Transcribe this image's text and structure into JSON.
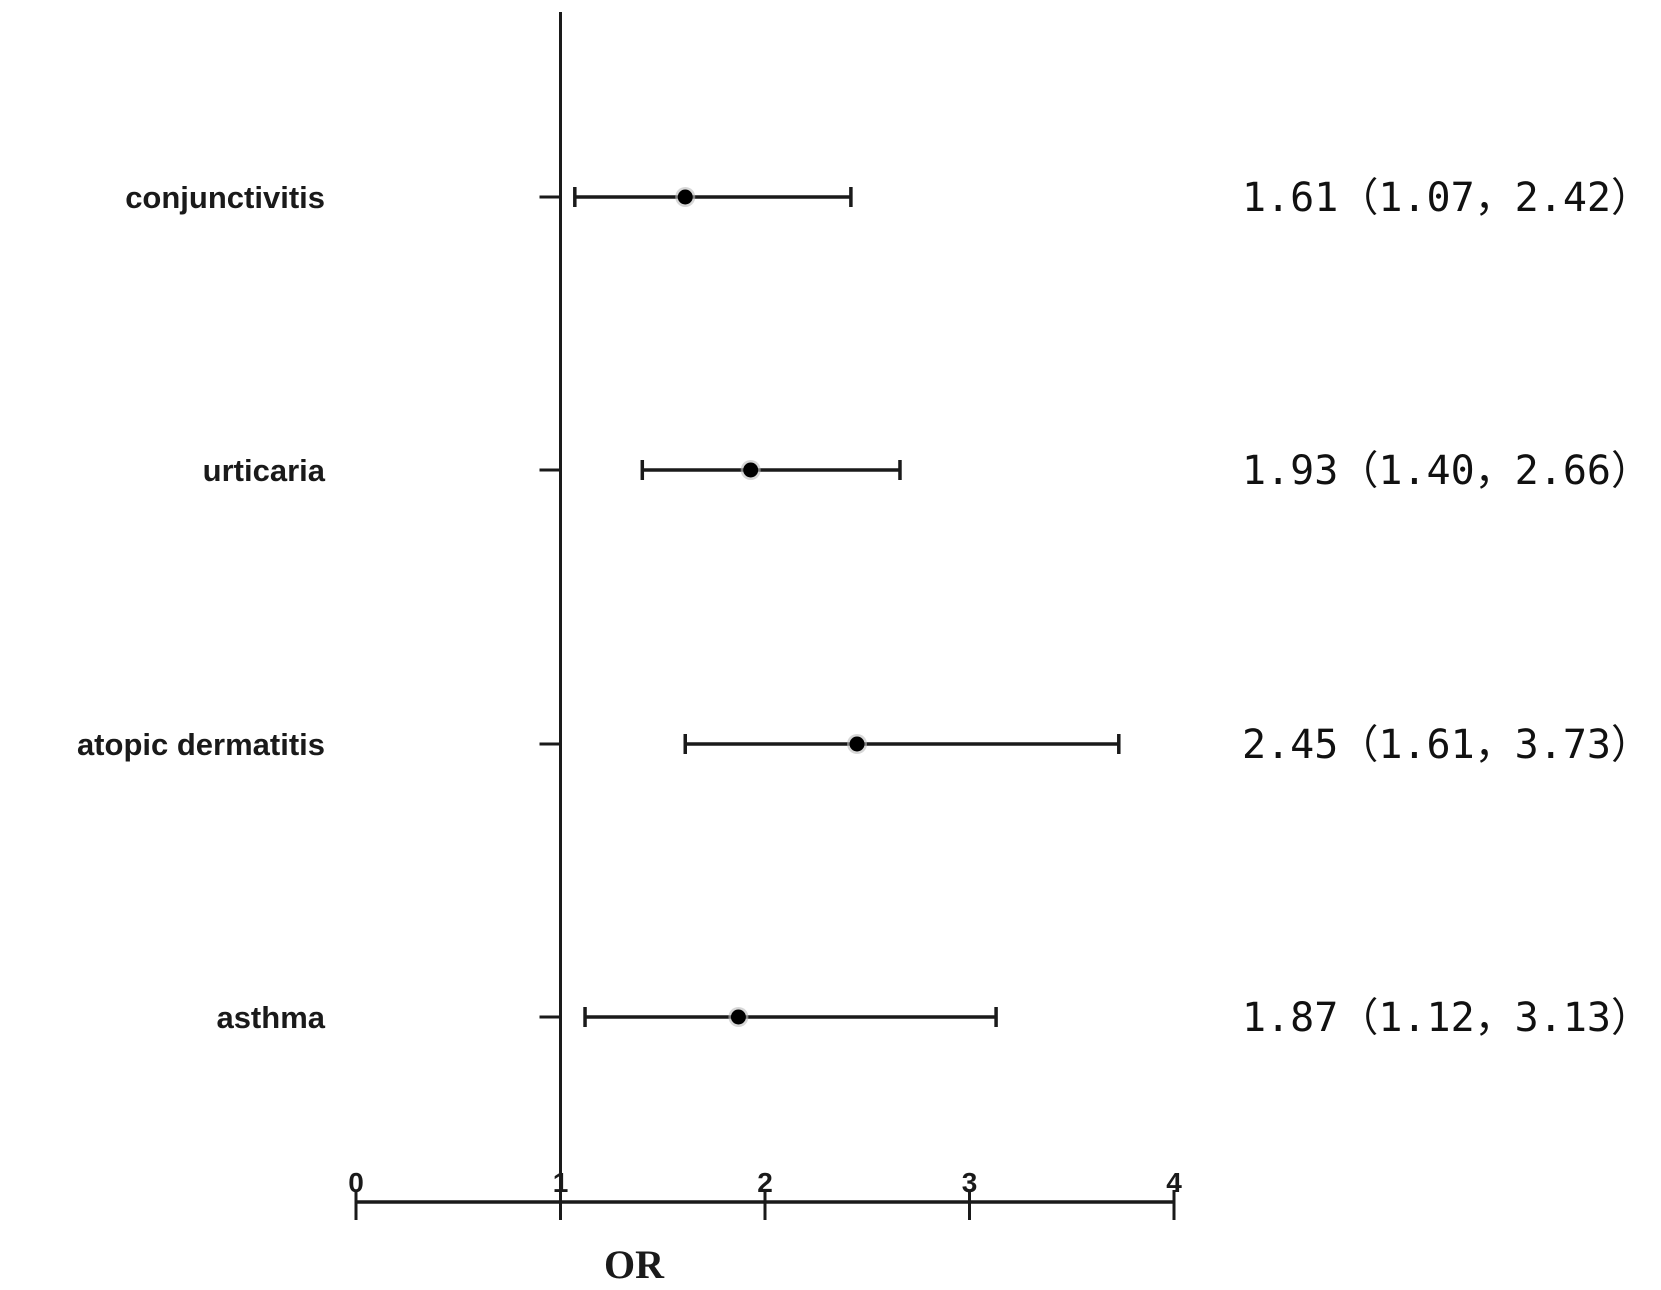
{
  "chart_data": {
    "type": "forest",
    "xlabel": "OR",
    "xlim": [
      0,
      4
    ],
    "xticks": [
      "0",
      "1",
      "2",
      "3",
      "4"
    ],
    "reference_line": 1,
    "colors": {
      "line": "#1a1a1a",
      "point": "#000000",
      "background": "#ffffff"
    },
    "rows": [
      {
        "label": "conjunctivitis",
        "or": 1.61,
        "lower": 1.07,
        "upper": 2.42,
        "text": "1.61（1.07，2.42）"
      },
      {
        "label": "urticaria",
        "or": 1.93,
        "lower": 1.4,
        "upper": 2.66,
        "text": "1.93（1.40，2.66）"
      },
      {
        "label": "atopic dermatitis",
        "or": 2.45,
        "lower": 1.61,
        "upper": 3.73,
        "text": "2.45（1.61，3.73）"
      },
      {
        "label": "asthma",
        "or": 1.87,
        "lower": 1.12,
        "upper": 3.13,
        "text": "1.87（1.12，3.13）"
      }
    ]
  }
}
